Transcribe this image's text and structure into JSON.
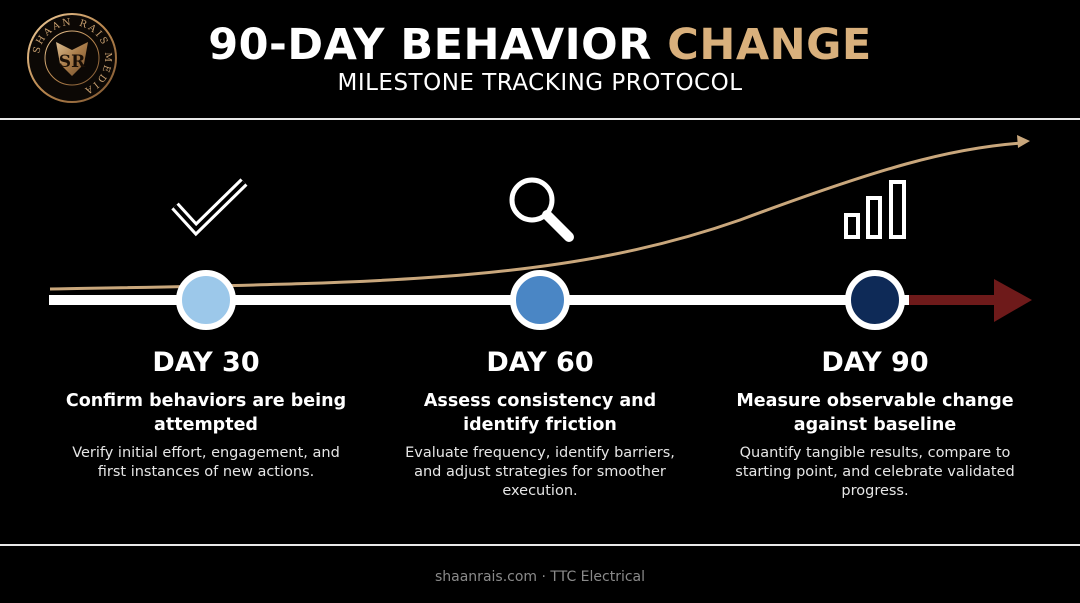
{
  "brand": {
    "name_ring": "SHAAN RAIS MEDIA",
    "monogram": "SR"
  },
  "header": {
    "title_main": "90-DAY BEHAVIOR",
    "title_accent": "CHANGE",
    "subtitle": "MILESTONE TRACKING PROTOCOL"
  },
  "milestones": [
    {
      "icon": "checkmark-icon",
      "day": "DAY 30",
      "headline": "Confirm behaviors are being attempted",
      "desc": "Verify initial effort, engagement, and first instances of new actions.",
      "node_color": "#9cc8ea"
    },
    {
      "icon": "magnifier-icon",
      "day": "DAY 60",
      "headline": "Assess consistency and identify friction",
      "desc": "Evaluate frequency, identify barriers, and adjust strategies for smoother execution.",
      "node_color": "#4a86c5"
    },
    {
      "icon": "bar-chart-icon",
      "day": "DAY 90",
      "headline": "Measure observable change against baseline",
      "desc": "Quantify tangible results, compare to starting point, and celebrate validated progress.",
      "node_color": "#0e2a57"
    }
  ],
  "colors": {
    "accent": "#d9b07c",
    "trend": "#c9a77c",
    "timeline": "#ffffff",
    "arrow": "#6e1a1a"
  },
  "footer": {
    "text": "shaanrais.com · TTC Electrical"
  }
}
